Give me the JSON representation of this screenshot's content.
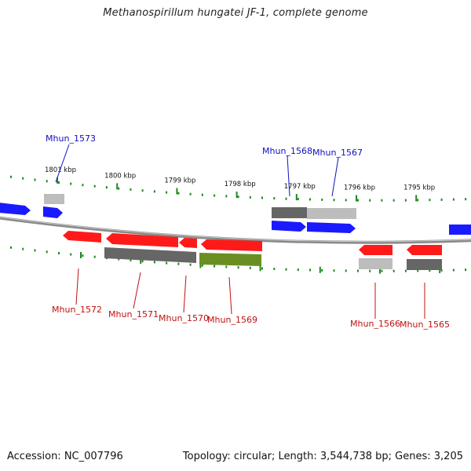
{
  "title": "Methanospirillum hungatei JF-1, complete genome",
  "accession_text": "Accession: NC_007796",
  "summary_text": "Topology: circular; Length: 3,544,738 bp; Genes: 3,205",
  "colors": {
    "forward_gene": "#1a1aff",
    "reverse_gene": "#ff1a1a",
    "backbone": "#8c8c8c",
    "tick": "#1f8a1f",
    "cds_dark": "#666666",
    "cds_light": "#bdbdbd",
    "cds_olive": "#6b8e23",
    "label_forward": "#1010c0",
    "label_reverse": "#c01010"
  },
  "kbp_ticks": [
    {
      "label": "1801 kbp",
      "kbp": 1801
    },
    {
      "label": "1800 kbp",
      "kbp": 1800
    },
    {
      "label": "1799 kbp",
      "kbp": 1799
    },
    {
      "label": "1798 kbp",
      "kbp": 1798
    },
    {
      "label": "1797 kbp",
      "kbp": 1797
    },
    {
      "label": "1796 kbp",
      "kbp": 1796
    },
    {
      "label": "1795 kbp",
      "kbp": 1795
    }
  ],
  "gene_labels": [
    {
      "name": "Mhun_1573",
      "strand": "forward"
    },
    {
      "name": "Mhun_1568",
      "strand": "forward"
    },
    {
      "name": "Mhun_1567",
      "strand": "forward"
    },
    {
      "name": "Mhun_1572",
      "strand": "reverse"
    },
    {
      "name": "Mhun_1571",
      "strand": "reverse"
    },
    {
      "name": "Mhun_1570",
      "strand": "reverse"
    },
    {
      "name": "Mhun_1569",
      "strand": "reverse"
    },
    {
      "name": "Mhun_1566",
      "strand": "reverse"
    },
    {
      "name": "Mhun_1565",
      "strand": "reverse"
    }
  ]
}
